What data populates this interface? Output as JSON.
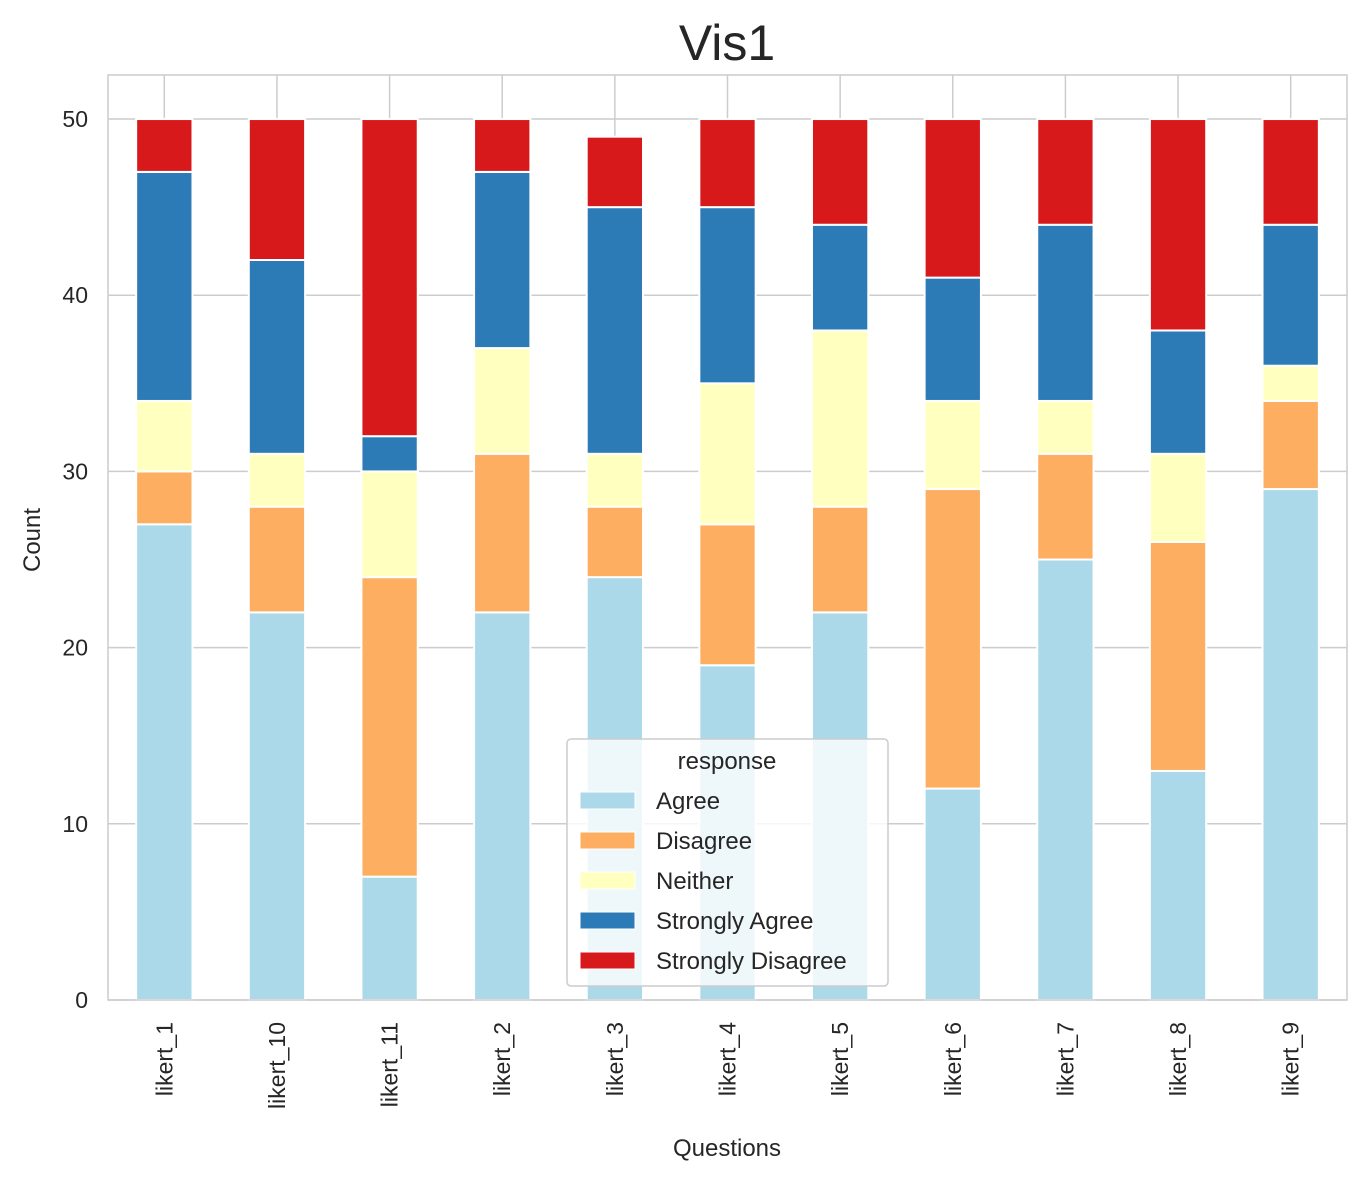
{
  "chart_data": {
    "type": "bar",
    "stacked": true,
    "title": "Vis1",
    "xlabel": "Questions",
    "ylabel": "Count",
    "ylim": [
      0,
      52.5
    ],
    "yticks": [
      0,
      10,
      20,
      30,
      40,
      50
    ],
    "grid": true,
    "legend": {
      "title": "response",
      "placement": "lower-center"
    },
    "categories": [
      "likert_1",
      "likert_10",
      "likert_11",
      "likert_2",
      "likert_3",
      "likert_4",
      "likert_5",
      "likert_6",
      "likert_7",
      "likert_8",
      "likert_9"
    ],
    "series": [
      {
        "name": "Agree",
        "color": "#abd9e9",
        "values": [
          27,
          22,
          7,
          22,
          24,
          19,
          22,
          12,
          25,
          13,
          29
        ]
      },
      {
        "name": "Disagree",
        "color": "#fdae61",
        "values": [
          3,
          6,
          17,
          9,
          4,
          8,
          6,
          17,
          6,
          13,
          5
        ]
      },
      {
        "name": "Neither",
        "color": "#ffffbf",
        "values": [
          4,
          3,
          6,
          6,
          3,
          8,
          10,
          5,
          3,
          5,
          2
        ]
      },
      {
        "name": "Strongly Agree",
        "color": "#2c7bb6",
        "values": [
          13,
          11,
          2,
          10,
          14,
          10,
          6,
          7,
          10,
          7,
          8
        ]
      },
      {
        "name": "Strongly Disagree",
        "color": "#d7191c",
        "values": [
          3,
          8,
          18,
          3,
          4,
          5,
          6,
          9,
          6,
          12,
          6
        ]
      }
    ]
  }
}
